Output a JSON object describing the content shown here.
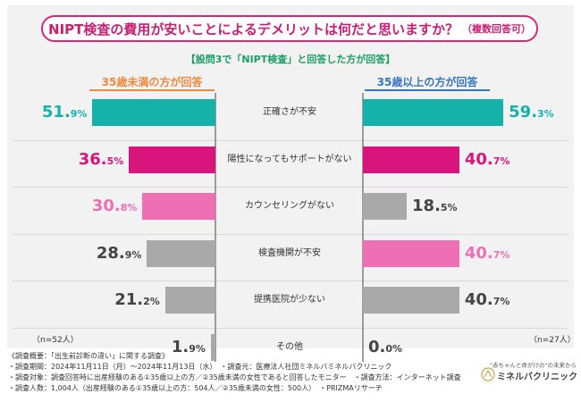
{
  "title": "NIPT検査の費用が安いことによるデメリットは何だと思いますか？",
  "title_note": "（複数回答可）",
  "subtitle": "【設問3で「NIPT検査」と回答した方が回答】",
  "colors": {
    "teal": "#14b2a8",
    "magenta": "#d8157d",
    "pink": "#ef6fb4",
    "gray": "#a9a9a9",
    "title": "#c91e74",
    "subtitle": "#1a9e63",
    "left_group": "#f08a3c",
    "right_group": "#3575c3"
  },
  "chart_data": {
    "type": "bar",
    "title": "NIPT検査の費用が安いことによるデメリットは何だと思いますか？（複数回答可）",
    "unit": "%",
    "xlim": [
      0,
      70
    ],
    "categories": [
      "正確さが不安",
      "陽性になってもサポートがない",
      "カウンセリングがない",
      "検査機関が不安",
      "提携医院が少ない",
      "その他"
    ],
    "series": [
      {
        "name": "35歳未満の方が回答",
        "n_label": "（n=52人）",
        "values": [
          51.9,
          36.5,
          30.8,
          28.9,
          21.2,
          1.9
        ],
        "bar_colors": [
          "#14b2a8",
          "#d8157d",
          "#ef6fb4",
          "#a9a9a9",
          "#a9a9a9",
          "#a9a9a9"
        ],
        "label_colors": [
          "#14b2a8",
          "#d8157d",
          "#ef6fb4",
          "#444444",
          "#444444",
          "#444444"
        ]
      },
      {
        "name": "35歳以上の方が回答",
        "n_label": "（n=27人）",
        "values": [
          59.3,
          40.7,
          18.5,
          40.7,
          40.7,
          0.0
        ],
        "bar_colors": [
          "#14b2a8",
          "#d8157d",
          "#a9a9a9",
          "#ef6fb4",
          "#a9a9a9",
          "#a9a9a9"
        ],
        "label_colors": [
          "#14b2a8",
          "#d8157d",
          "#444444",
          "#ef6fb4",
          "#444444",
          "#444444"
        ]
      }
    ]
  },
  "footer": {
    "lines": [
      "《調査概要：「出生前診断の違い」に関する調査》",
      "・調査期間：2024年11月11日（月）～2024年11月13日（水）　・調査元：医療法人社団ミネルバミネルバクリニック",
      "・調査対象：調査回答時に出産経験のある①35歳以上の方／②35歳未満の女性であると回答したモニター　・調査方法：インターネット調査",
      "・調査人数：1,004人（出産経験のある①35歳以上の方：504人／②35歳未満の女性：500人）　・PRIZMAリサーチ"
    ]
  },
  "logo": {
    "tagline": "\"赤ちゃんと命がけの\"の未来から",
    "name": "ミネルバクリニック"
  }
}
